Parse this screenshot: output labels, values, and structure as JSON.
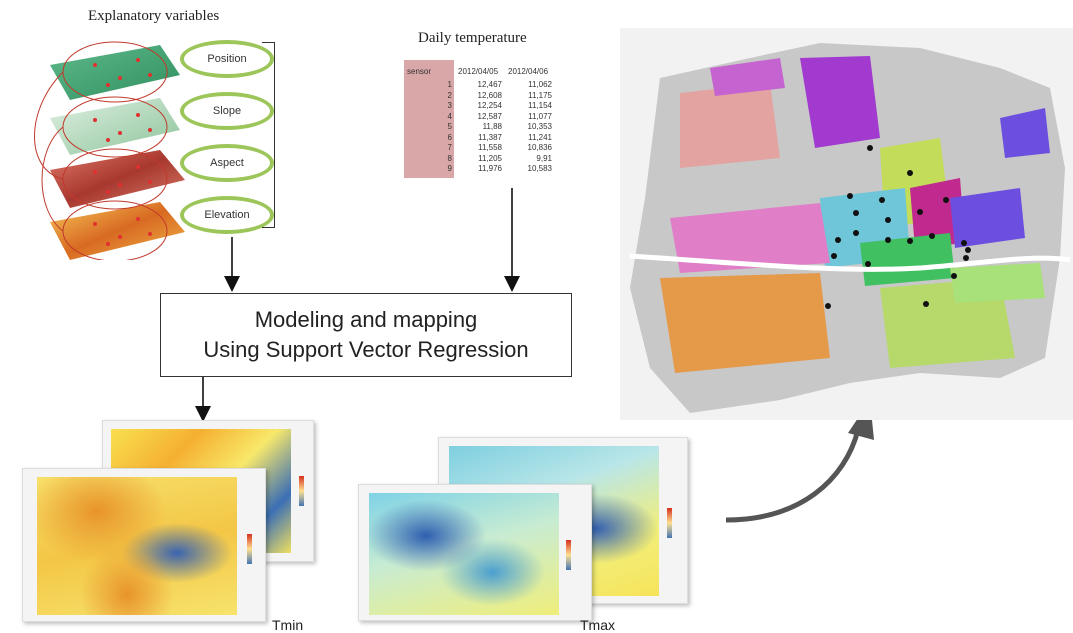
{
  "explanatory": {
    "title": "Explanatory variables",
    "variables": [
      "Position",
      "Slope",
      "Aspect",
      "Elevation"
    ]
  },
  "temperature": {
    "title": "Daily temperature",
    "table": {
      "columns": [
        "sensor",
        "2012/04/05",
        "2012/04/06"
      ],
      "rows": [
        [
          "1",
          "12,467",
          "11,062"
        ],
        [
          "2",
          "12,608",
          "11,175"
        ],
        [
          "3",
          "12,254",
          "11,154"
        ],
        [
          "4",
          "12,587",
          "11,077"
        ],
        [
          "5",
          "11,88",
          "10,353"
        ],
        [
          "6",
          "11,387",
          "11,241"
        ],
        [
          "7",
          "11,558",
          "10,836"
        ],
        [
          "8",
          "11,205",
          "9,91"
        ],
        [
          "9",
          "11,976",
          "10,583"
        ]
      ]
    }
  },
  "model": {
    "line1": "Modeling and mapping",
    "line2": "Using Support Vector Regression"
  },
  "outputs": {
    "tmin_label": "Tmin",
    "tmax_label": "Tmax"
  },
  "colors": {
    "pill_border": "#9dc65a",
    "sensor_column": "#d9a7a7",
    "arrow": "#555555"
  }
}
